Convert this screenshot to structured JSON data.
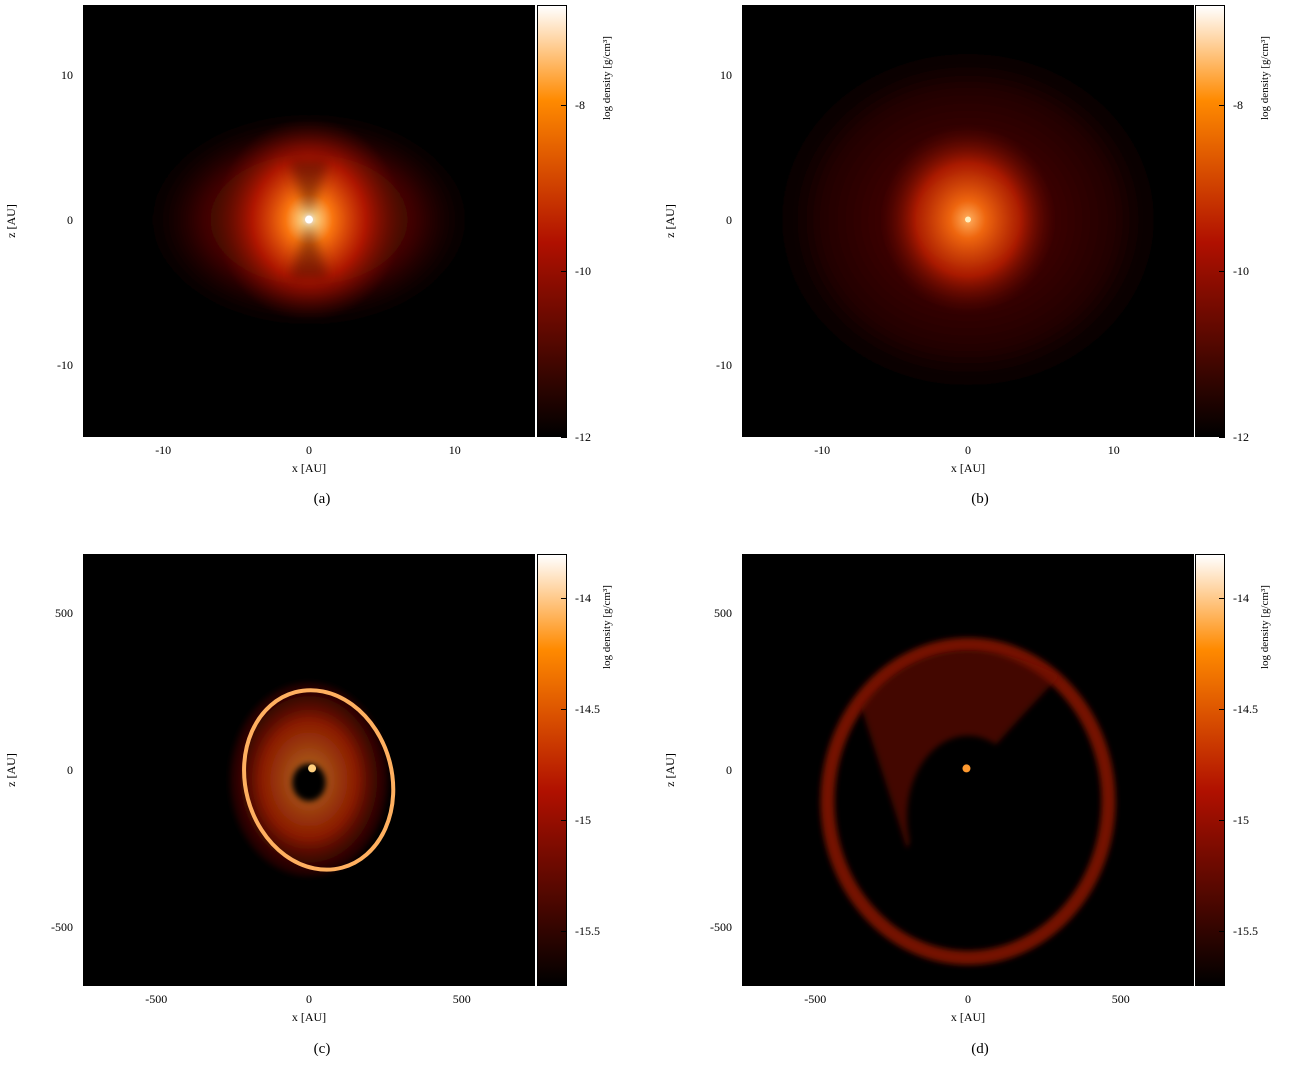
{
  "chart_data": [
    {
      "type": "heatmap",
      "caption": "(a)",
      "xlabel": "x [AU]",
      "ylabel": "z [AU]",
      "colorbar_label": "log density [g/cm³]",
      "xlim": [
        -15.5,
        15.5
      ],
      "ylim": [
        -15,
        14.8
      ],
      "xticks": [
        "-10",
        "0",
        "10"
      ],
      "yticks": [
        "10",
        "0",
        "-10"
      ],
      "xtick_values": [
        -10,
        0,
        10
      ],
      "ytick_values": [
        10,
        0,
        -10
      ],
      "colorbar_range": [
        -12,
        -6.8
      ],
      "colorbar_ticks": [
        "-8",
        "-10",
        "-12"
      ],
      "colorbar_tick_values": [
        -8,
        -10,
        -12
      ],
      "structure": "compact bright core at origin with bipolar lobes, peak density near -7"
    },
    {
      "type": "heatmap",
      "caption": "(b)",
      "xlabel": "x [AU]",
      "ylabel": "z [AU]",
      "colorbar_label": "log density [g/cm³]",
      "xlim": [
        -15.5,
        15.5
      ],
      "ylim": [
        -15,
        14.8
      ],
      "xticks": [
        "-10",
        "0",
        "10"
      ],
      "yticks": [
        "10",
        "0",
        "-10"
      ],
      "xtick_values": [
        -10,
        0,
        10
      ],
      "ytick_values": [
        10,
        0,
        -10
      ],
      "colorbar_range": [
        -12,
        -6.8
      ],
      "colorbar_ticks": [
        "-8",
        "-10",
        "-12"
      ],
      "colorbar_tick_values": [
        -8,
        -10,
        -12
      ],
      "structure": "extended diffuse envelope with clumpy core at origin"
    },
    {
      "type": "heatmap",
      "caption": "(c)",
      "xlabel": "x [AU]",
      "ylabel": "z [AU]",
      "colorbar_label": "log density [g/cm³]",
      "xlim": [
        -740,
        740
      ],
      "ylim": [
        -690,
        690
      ],
      "xticks": [
        "-500",
        "0",
        "500"
      ],
      "yticks": [
        "500",
        "0",
        "-500"
      ],
      "xtick_values": [
        -500,
        0,
        500
      ],
      "ytick_values": [
        500,
        0,
        -500
      ],
      "colorbar_range": [
        -15.75,
        -13.8
      ],
      "colorbar_ticks": [
        "-14",
        "-14.5",
        "-15",
        "-15.5"
      ],
      "colorbar_tick_values": [
        -14,
        -14.5,
        -15,
        -15.5
      ],
      "structure": "bright elliptical ring around origin, radius ~250 AU, dense knot at center"
    },
    {
      "type": "heatmap",
      "caption": "(d)",
      "xlabel": "x [AU]",
      "ylabel": "z [AU]",
      "colorbar_label": "log density [g/cm³]",
      "xlim": [
        -740,
        740
      ],
      "ylim": [
        -690,
        690
      ],
      "xticks": [
        "-500",
        "0",
        "500"
      ],
      "yticks": [
        "500",
        "0",
        "-500"
      ],
      "xtick_values": [
        -500,
        0,
        500
      ],
      "ytick_values": [
        500,
        0,
        -500
      ],
      "colorbar_range": [
        -15.75,
        -13.8
      ],
      "colorbar_ticks": [
        "-14",
        "-14.5",
        "-15",
        "-15.5"
      ],
      "colorbar_tick_values": [
        -14,
        -14.5,
        -15,
        -15.5
      ],
      "structure": "faint large elliptical shell radius ~450 AU, small dense knot near origin"
    }
  ],
  "colors": {
    "map_low": "#000000",
    "map_mid": "#b01000",
    "map_high": "#ff8a00",
    "map_top": "#ffffff"
  }
}
